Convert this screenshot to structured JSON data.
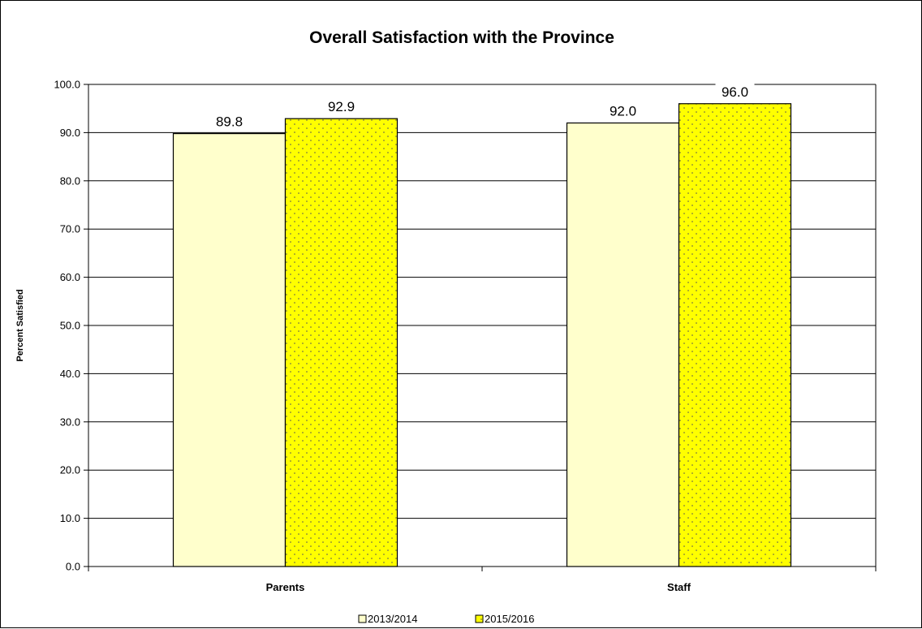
{
  "chart_data": {
    "type": "bar",
    "title": "Overall Satisfaction with the Province",
    "xlabel": "",
    "ylabel": "Percent Satisfied",
    "categories": [
      "Parents",
      "Staff"
    ],
    "series": [
      {
        "name": "2013/2014",
        "values": [
          89.8,
          92.0
        ],
        "color": "#ffffcc",
        "pattern": "none"
      },
      {
        "name": "2015/2016",
        "values": [
          92.9,
          96.0
        ],
        "color": "#ffff00",
        "pattern": "dots"
      }
    ],
    "data_labels": [
      [
        "89.8",
        "92.0"
      ],
      [
        "92.9",
        "96.0"
      ]
    ],
    "ylim": [
      0,
      100
    ],
    "yticks": [
      "0.0",
      "10.0",
      "20.0",
      "30.0",
      "40.0",
      "50.0",
      "60.0",
      "70.0",
      "80.0",
      "90.0",
      "100.0"
    ],
    "grid": true,
    "legend_position": "bottom"
  }
}
